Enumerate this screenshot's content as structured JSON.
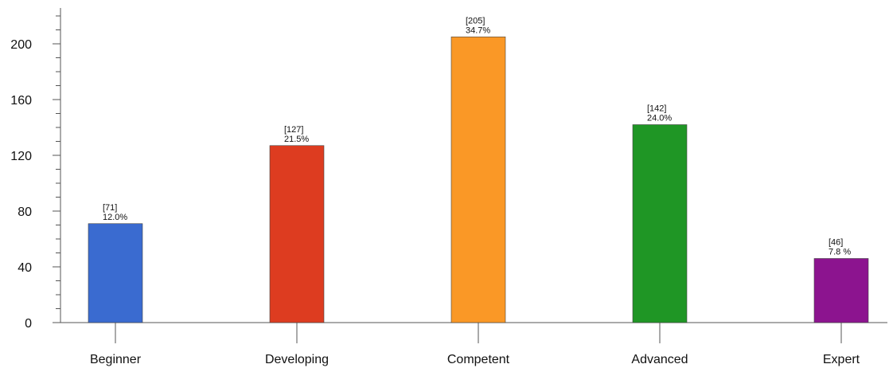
{
  "chart_data": {
    "type": "bar",
    "title": "",
    "xlabel": "",
    "ylabel": "",
    "ylim": [
      0,
      225
    ],
    "yticks": [
      0,
      40,
      80,
      120,
      160,
      200
    ],
    "ytick_labels": [
      "0",
      "40",
      "80",
      "120",
      "160",
      "200"
    ],
    "minor_tick_step": 10,
    "grid": false,
    "legend": "none",
    "categories": [
      "Beginner",
      "Developing",
      "Competent",
      "Advanced",
      "Expert"
    ],
    "values": [
      71,
      127,
      205,
      142,
      46
    ],
    "count_labels": [
      "[71]",
      "[127]",
      "[205]",
      "[142]",
      "[46]"
    ],
    "percent_labels": [
      "12.0%",
      "21.5%",
      "34.7%",
      "24.0%",
      "7.8 %"
    ],
    "colors": [
      "#3a6bd0",
      "#dd3c20",
      "#fa9826",
      "#1f9625",
      "#8c148f"
    ]
  }
}
